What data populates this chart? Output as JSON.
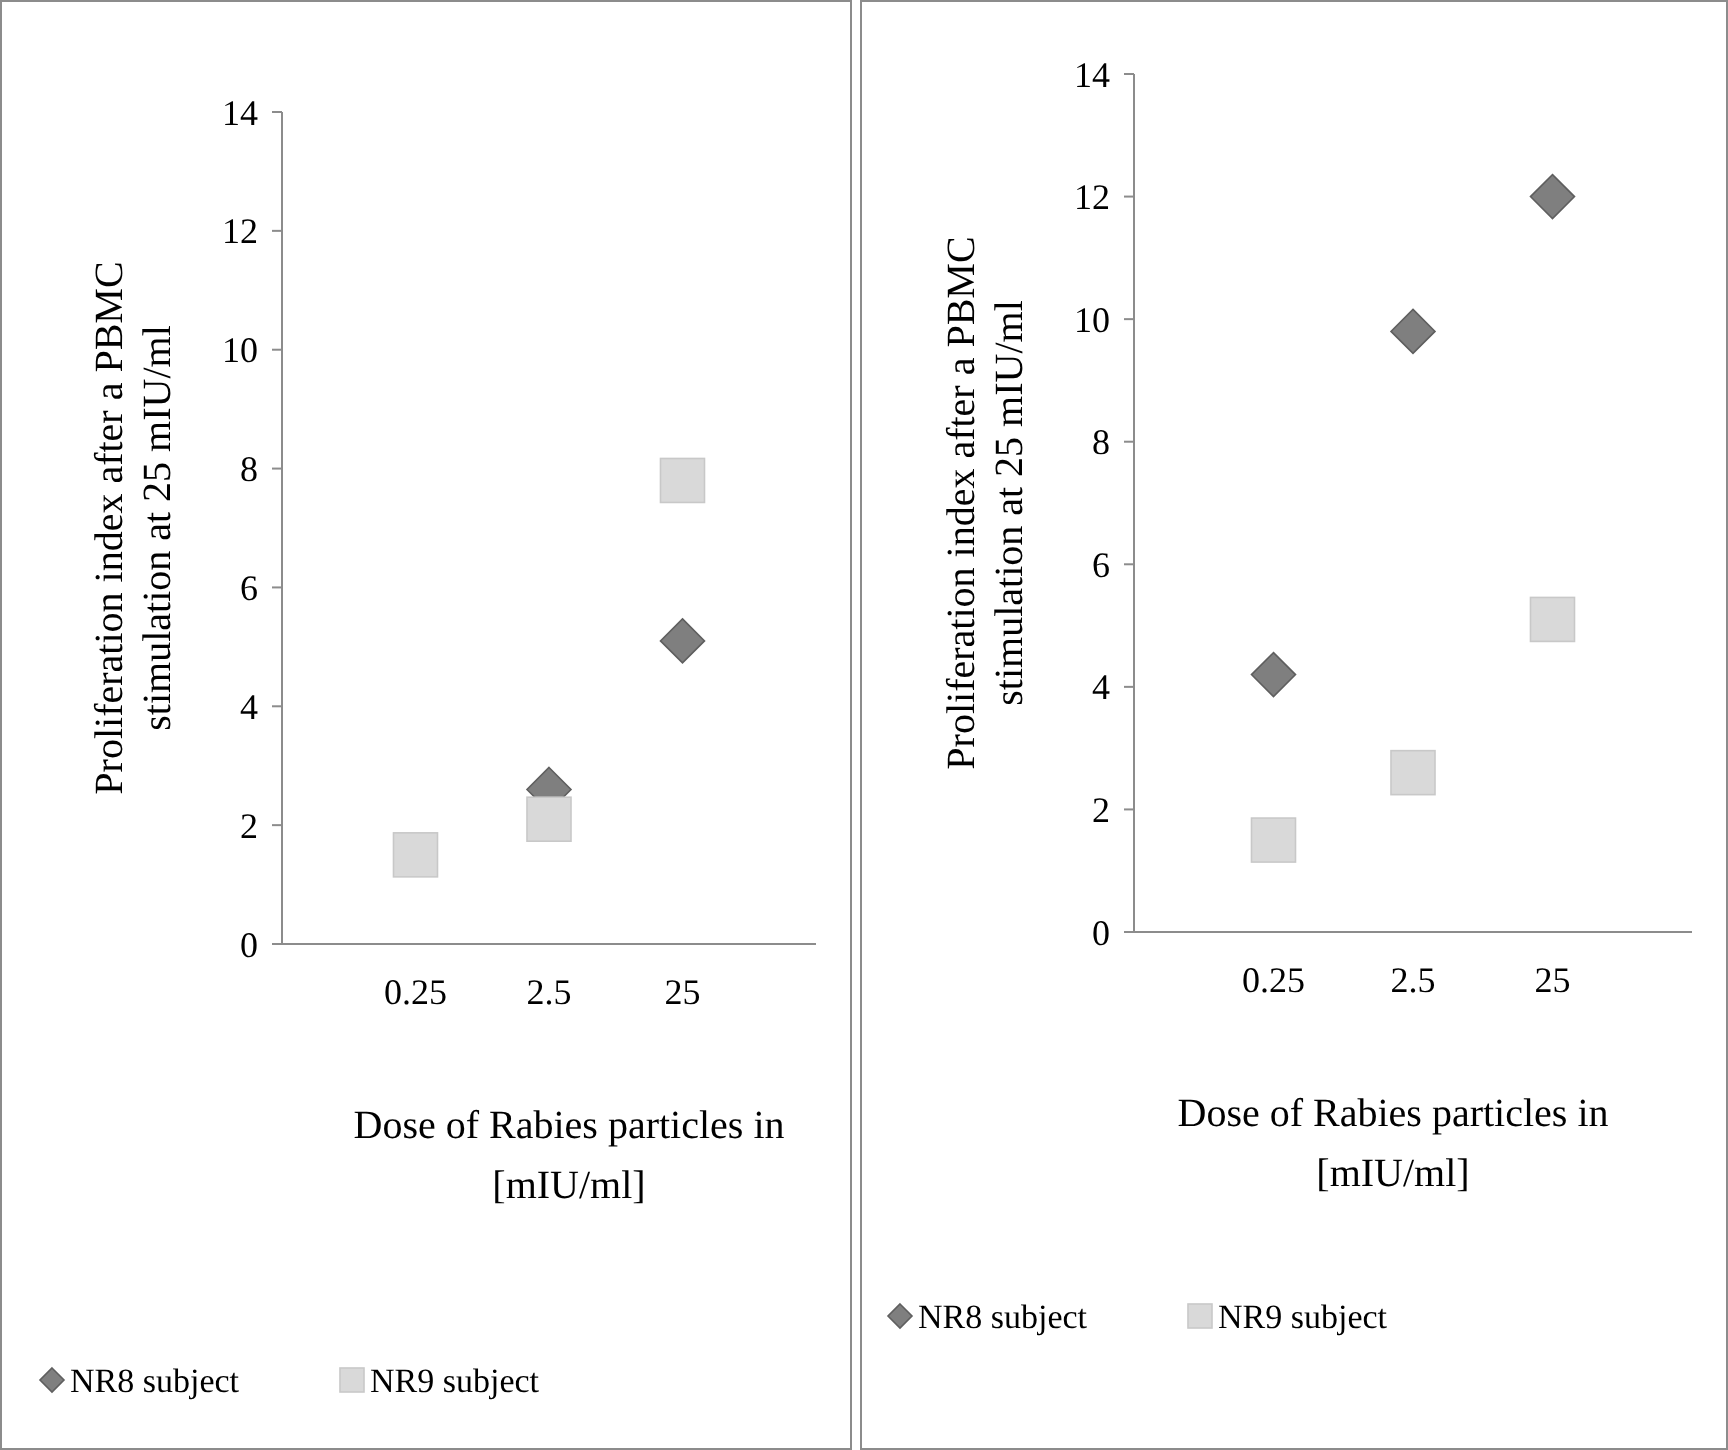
{
  "chart_data": [
    {
      "type": "scatter",
      "xlabel": "Dose of Rabies particles in [mIU/ml]",
      "ylabel": "Proliferation index after a PBMC stimulation at 25 mIU/ml",
      "categories": [
        "0.25",
        "2.5",
        "25"
      ],
      "ylim": [
        0,
        14
      ],
      "yticks": [
        0,
        2,
        4,
        6,
        8,
        10,
        12,
        14
      ],
      "grid": false,
      "legend": "bottom",
      "series": [
        {
          "name": "NR8 subject",
          "color": "#7f7f7f",
          "marker": "diamond",
          "values": [
            null,
            2.6,
            5.1
          ]
        },
        {
          "name": "NR9 subject",
          "color": "#d9d9d9",
          "marker": "square",
          "values": [
            1.5,
            2.1,
            7.8
          ]
        }
      ]
    },
    {
      "type": "scatter",
      "xlabel": "Dose of Rabies particles in [mIU/ml]",
      "ylabel": "Proliferation index after a PBMC stimulation at 25 mIU/ml",
      "categories": [
        "0.25",
        "2.5",
        "25"
      ],
      "ylim": [
        0,
        14
      ],
      "yticks": [
        0,
        2,
        4,
        6,
        8,
        10,
        12,
        14
      ],
      "grid": false,
      "legend": "bottom",
      "series": [
        {
          "name": "NR8 subject",
          "color": "#7f7f7f",
          "marker": "diamond",
          "values": [
            4.2,
            9.8,
            12.0
          ]
        },
        {
          "name": "NR9 subject",
          "color": "#d9d9d9",
          "marker": "square",
          "values": [
            1.5,
            2.6,
            5.1
          ]
        }
      ]
    }
  ]
}
